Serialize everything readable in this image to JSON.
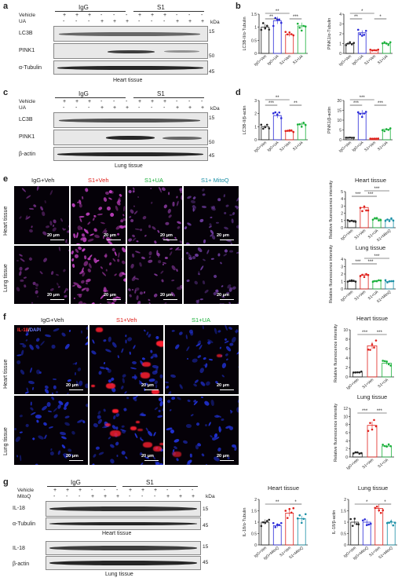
{
  "panels": {
    "a": {
      "letter": "a",
      "groups": [
        "IgG",
        "S1"
      ],
      "rows": [
        "Vehicle",
        "UA"
      ],
      "vehicle_signs": [
        "+",
        "+",
        "+",
        "-",
        "-",
        "-",
        "+",
        "+",
        "+",
        "-",
        "-",
        "-"
      ],
      "ua_signs": [
        "-",
        "-",
        "-",
        "+",
        "+",
        "+",
        "-",
        "-",
        "-",
        "+",
        "+",
        "+"
      ],
      "kda": "kDa",
      "blots": [
        {
          "label": "LC3B",
          "mw": "15"
        },
        {
          "label": "PINK1",
          "mw": "50"
        },
        {
          "label": "α-Tubulin",
          "mw": "45"
        }
      ],
      "caption": "Heart tissue"
    },
    "c": {
      "letter": "c",
      "groups": [
        "IgG",
        "S1"
      ],
      "rows": [
        "Vehicle",
        "UA"
      ],
      "vehicle_signs": [
        "+",
        "+",
        "+",
        "-",
        "-",
        "-",
        "+",
        "+",
        "+",
        "-",
        "-",
        "-"
      ],
      "ua_signs": [
        "-",
        "-",
        "-",
        "+",
        "+",
        "+",
        "-",
        "-",
        "-",
        "+",
        "+",
        "+"
      ],
      "kda": "kDa",
      "blots": [
        {
          "label": "LC3B",
          "mw": "15"
        },
        {
          "label": "PINK1",
          "mw": "50"
        },
        {
          "label": "β-actin",
          "mw": "45"
        }
      ],
      "caption": "Lung tissue"
    },
    "e": {
      "letter": "e",
      "columns": [
        {
          "label": "IgG+Veh",
          "color": "#222222"
        },
        {
          "label": "S1+Veh",
          "color": "#e0201b"
        },
        {
          "label": "S1+UA",
          "color": "#19b03a"
        },
        {
          "label": "S1+ MitoQ",
          "color": "#1a8fa6"
        }
      ],
      "rows": [
        "Heart tissue",
        "Lung tissue"
      ],
      "scale": "20 μm"
    },
    "f": {
      "letter": "f",
      "stain_red": "IL-18",
      "stain_sep": "/",
      "stain_blue": "DAPI",
      "columns": [
        {
          "label": "IgG+Veh",
          "color": "#222222"
        },
        {
          "label": "S1+Veh",
          "color": "#e0201b"
        },
        {
          "label": "S1+UA",
          "color": "#19b03a"
        }
      ],
      "rows": [
        "Heart tissue",
        "Lung tissue"
      ],
      "scale": "20 μm"
    },
    "g": {
      "letter": "g",
      "groups": [
        "IgG",
        "S1"
      ],
      "rows": [
        "Vehicle",
        "MitoQ"
      ],
      "vehicle_signs": [
        "+",
        "+",
        "+",
        "-",
        "-",
        "-",
        "+",
        "+",
        "+",
        "-",
        "-",
        "-"
      ],
      "mitoq_signs": [
        "-",
        "-",
        "-",
        "+",
        "+",
        "+",
        "-",
        "-",
        "-",
        "+",
        "+",
        "+"
      ],
      "kda": "kDa",
      "blots_heart": [
        {
          "label": "IL-18",
          "mw": "15"
        },
        {
          "label": "α-Tubulin",
          "mw": "45"
        }
      ],
      "caption_heart": "Heart tissue",
      "blots_lung": [
        {
          "label": "IL-18",
          "mw": "15"
        },
        {
          "label": "β-actin",
          "mw": "45"
        }
      ],
      "caption_lung": "Lung tissue"
    },
    "b": {
      "letter": "b"
    },
    "d": {
      "letter": "d"
    }
  },
  "chart_data": [
    {
      "id": "b1",
      "type": "bar",
      "ylabel": "LC3B-II/α-Tubulin",
      "ylim": [
        0,
        1.5
      ],
      "yticks": [
        0,
        0.5,
        1.0,
        1.5
      ],
      "categories": [
        "IgG+Veh",
        "IgG+UA",
        "S1+Veh",
        "S1+UA"
      ],
      "values": [
        1.0,
        1.25,
        0.72,
        1.05
      ],
      "colors": [
        "#222222",
        "#2b2bd8",
        "#e0201b",
        "#19b03a"
      ],
      "sig": [
        {
          "from": 0,
          "to": 1,
          "label": "**",
          "level": 0
        },
        {
          "from": 0,
          "to": 2,
          "label": "**",
          "level": 1
        },
        {
          "from": 2,
          "to": 3,
          "label": "***",
          "level": 0
        }
      ]
    },
    {
      "id": "b2",
      "type": "bar",
      "ylabel": "PINK1/α-Tubulin",
      "ylim": [
        0,
        4
      ],
      "yticks": [
        0,
        1,
        2,
        3,
        4
      ],
      "categories": [
        "IgG+Veh",
        "IgG+UA",
        "S1+Veh",
        "S1+UA"
      ],
      "values": [
        1.0,
        2.1,
        0.35,
        1.0
      ],
      "colors": [
        "#222222",
        "#2b2bd8",
        "#e0201b",
        "#19b03a"
      ],
      "sig": [
        {
          "from": 0,
          "to": 1,
          "label": "**",
          "level": 0
        },
        {
          "from": 0,
          "to": 2,
          "label": "*",
          "level": 1
        },
        {
          "from": 2,
          "to": 3,
          "label": "*",
          "level": 0
        }
      ]
    },
    {
      "id": "d1",
      "type": "bar",
      "ylabel": "LC3B-II/β-actin",
      "ylim": [
        0,
        3
      ],
      "yticks": [
        0,
        1,
        2,
        3
      ],
      "categories": [
        "IgG+Veh",
        "IgG+UA",
        "S1+Veh",
        "S1+UA"
      ],
      "values": [
        1.0,
        1.85,
        0.65,
        1.2
      ],
      "colors": [
        "#222222",
        "#2b2bd8",
        "#e0201b",
        "#19b03a"
      ],
      "sig": [
        {
          "from": 0,
          "to": 1,
          "label": "***",
          "level": 0
        },
        {
          "from": 0,
          "to": 2,
          "label": "**",
          "level": 1
        },
        {
          "from": 2,
          "to": 3,
          "label": "**",
          "level": 0
        }
      ]
    },
    {
      "id": "d2",
      "type": "bar",
      "ylabel": "PINK1/β-actin",
      "ylim": [
        0,
        20
      ],
      "yticks": [
        0,
        5,
        10,
        15,
        20
      ],
      "categories": [
        "IgG+Veh",
        "IgG+UA",
        "S1+Veh",
        "S1+UA"
      ],
      "values": [
        1.0,
        13.5,
        0.6,
        5.3
      ],
      "colors": [
        "#222222",
        "#2b2bd8",
        "#e0201b",
        "#19b03a"
      ],
      "sig": [
        {
          "from": 0,
          "to": 1,
          "label": "***",
          "level": 0
        },
        {
          "from": 0,
          "to": 2,
          "label": "***",
          "level": 1
        },
        {
          "from": 2,
          "to": 3,
          "label": "***",
          "level": 0
        }
      ]
    },
    {
      "id": "e1",
      "type": "bar",
      "title": "Heart tissue",
      "ylabel": "Relative fluorescence intensity",
      "ylim": [
        0,
        5
      ],
      "yticks": [
        0,
        1,
        2,
        3,
        4,
        5
      ],
      "categories": [
        "IgG+Veh",
        "S1+Veh",
        "S1+UA",
        "S1+MitoQ"
      ],
      "values": [
        1.0,
        2.8,
        1.2,
        1.1
      ],
      "colors": [
        "#222222",
        "#e0201b",
        "#19b03a",
        "#1a8fa6"
      ],
      "sig": [
        {
          "from": 0,
          "to": 1,
          "label": "***",
          "level": 0
        },
        {
          "from": 1,
          "to": 2,
          "label": "***",
          "level": 0
        },
        {
          "from": 1,
          "to": 3,
          "label": "***",
          "level": 1
        }
      ]
    },
    {
      "id": "e2",
      "type": "bar",
      "title": "Lung tissue",
      "ylabel": "Relative fluorescence intensity",
      "ylim": [
        0,
        4
      ],
      "yticks": [
        0,
        1,
        2,
        3,
        4
      ],
      "categories": [
        "IgG+Veh",
        "S1+Veh",
        "S1+UA",
        "S1+MitoQ"
      ],
      "values": [
        1.0,
        1.85,
        1.1,
        1.0
      ],
      "colors": [
        "#222222",
        "#e0201b",
        "#19b03a",
        "#1a8fa6"
      ],
      "sig": [
        {
          "from": 0,
          "to": 1,
          "label": "***",
          "level": 0
        },
        {
          "from": 1,
          "to": 2,
          "label": "***",
          "level": 0
        },
        {
          "from": 1,
          "to": 3,
          "label": "***",
          "level": 1
        }
      ]
    },
    {
      "id": "f1",
      "type": "bar",
      "title": "Heart tissue",
      "ylabel": "Relative fluorescence intensity",
      "ylim": [
        0,
        10
      ],
      "yticks": [
        0,
        2,
        4,
        6,
        8,
        10
      ],
      "categories": [
        "IgG+Veh",
        "S1+Veh",
        "S1+UA"
      ],
      "values": [
        1.0,
        6.6,
        2.9
      ],
      "colors": [
        "#222222",
        "#e0201b",
        "#19b03a"
      ],
      "sig": [
        {
          "from": 0,
          "to": 1,
          "label": "***",
          "level": 0
        },
        {
          "from": 1,
          "to": 2,
          "label": "***",
          "level": 0
        }
      ]
    },
    {
      "id": "f2",
      "type": "bar",
      "title": "Lung tissue",
      "ylabel": "Relative fluorescence intensity",
      "ylim": [
        0,
        12
      ],
      "yticks": [
        0,
        2,
        4,
        6,
        8,
        10,
        12
      ],
      "categories": [
        "IgG+Veh",
        "S1+Veh",
        "S1+UA"
      ],
      "values": [
        1.0,
        7.8,
        2.7
      ],
      "colors": [
        "#222222",
        "#e0201b",
        "#19b03a"
      ],
      "sig": [
        {
          "from": 0,
          "to": 1,
          "label": "***",
          "level": 0
        },
        {
          "from": 1,
          "to": 2,
          "label": "***",
          "level": 0
        }
      ]
    },
    {
      "id": "g1",
      "type": "bar",
      "title": "Heart tissue",
      "ylabel": "IL-18/α-Tubulin",
      "ylim": [
        0,
        2.0
      ],
      "yticks": [
        0,
        0.5,
        1.0,
        1.5,
        2.0
      ],
      "categories": [
        "IgG+Veh",
        "IgG+MitoQ",
        "S1+Veh",
        "S1+MitoQ"
      ],
      "values": [
        1.0,
        0.85,
        1.4,
        1.15
      ],
      "colors": [
        "#222222",
        "#2b2bd8",
        "#e0201b",
        "#1a8fa6"
      ],
      "sig": [
        {
          "from": 0,
          "to": 2,
          "label": "**",
          "level": 0
        },
        {
          "from": 2,
          "to": 3,
          "label": "*",
          "level": 0
        }
      ]
    },
    {
      "id": "g2",
      "type": "bar",
      "title": "Lung tissue",
      "ylabel": "IL-18/β-actin",
      "ylim": [
        0,
        2.0
      ],
      "yticks": [
        0,
        0.5,
        1.0,
        1.5,
        2.0
      ],
      "categories": [
        "IgG+Veh",
        "IgG+MitoQ",
        "S1+Veh",
        "S1+MitoQ"
      ],
      "values": [
        1.0,
        1.0,
        1.6,
        1.0
      ],
      "colors": [
        "#222222",
        "#2b2bd8",
        "#e0201b",
        "#1a8fa6"
      ],
      "sig": [
        {
          "from": 0,
          "to": 2,
          "label": "*",
          "level": 0
        },
        {
          "from": 2,
          "to": 3,
          "label": "*",
          "level": 0
        }
      ]
    }
  ]
}
